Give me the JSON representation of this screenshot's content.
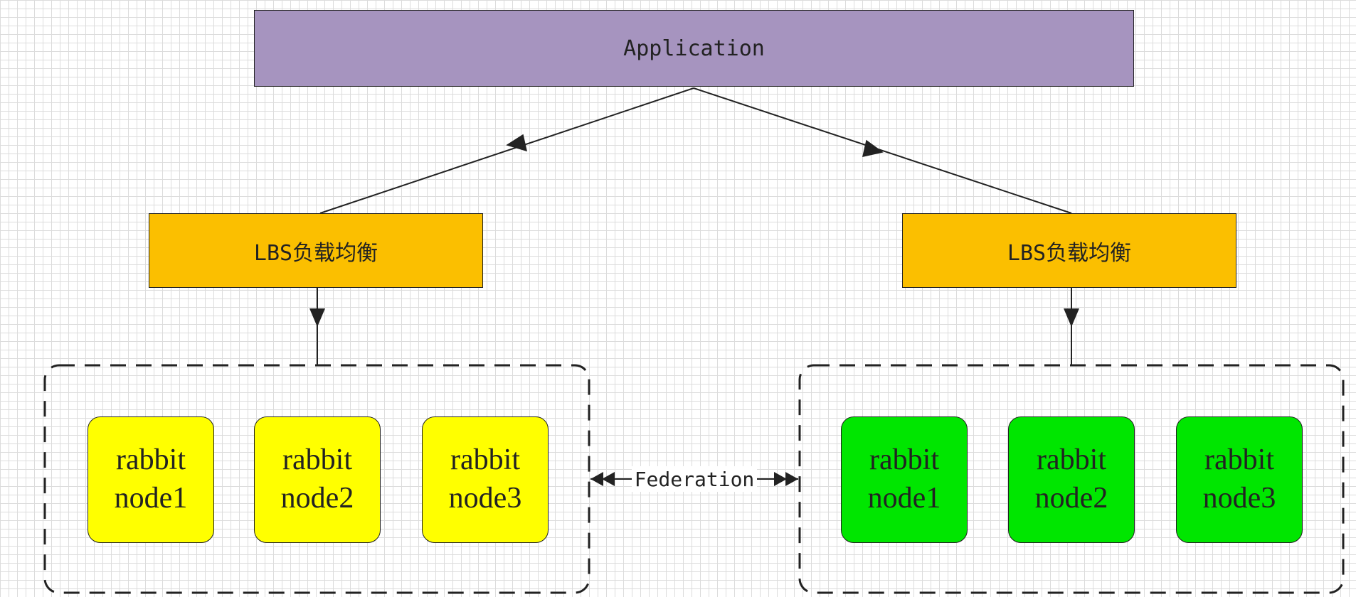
{
  "diagram": {
    "application": {
      "label": "Application"
    },
    "load_balancers": [
      {
        "label": "LBS负载均衡"
      },
      {
        "label": "LBS负载均衡"
      }
    ],
    "clusters": [
      {
        "color": "#ffff00",
        "nodes": [
          {
            "line1": "rabbit",
            "line2": "node1"
          },
          {
            "line1": "rabbit",
            "line2": "node2"
          },
          {
            "line1": "rabbit",
            "line2": "node3"
          }
        ]
      },
      {
        "color": "#00e600",
        "nodes": [
          {
            "line1": "rabbit",
            "line2": "node1"
          },
          {
            "line1": "rabbit",
            "line2": "node2"
          },
          {
            "line1": "rabbit",
            "line2": "node3"
          }
        ]
      }
    ],
    "federation": {
      "label": "Federation"
    },
    "colors": {
      "application": "#a694bf",
      "load_balancer": "#fbbf00",
      "cluster_left": "#ffff00",
      "cluster_right": "#00e600",
      "line": "#222222"
    }
  }
}
